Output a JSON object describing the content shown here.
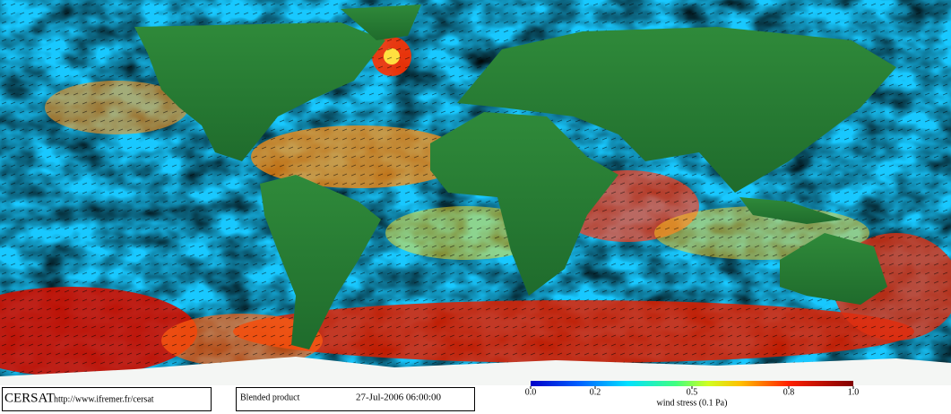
{
  "branding": {
    "label": "CERSAT",
    "url": "http://www.ifremer.fr/cersat"
  },
  "product": {
    "name": "Blended product",
    "date": "27-Jul-2006 06:00:00"
  },
  "colorbar": {
    "title": "wind stress (0.1 Pa)",
    "lim": [
      0,
      1
    ],
    "ticks": [
      {
        "value": 0,
        "label": "0.0"
      },
      0.2,
      0.5,
      0.8,
      {
        "value": 1,
        "label": "1.0"
      }
    ]
  }
}
